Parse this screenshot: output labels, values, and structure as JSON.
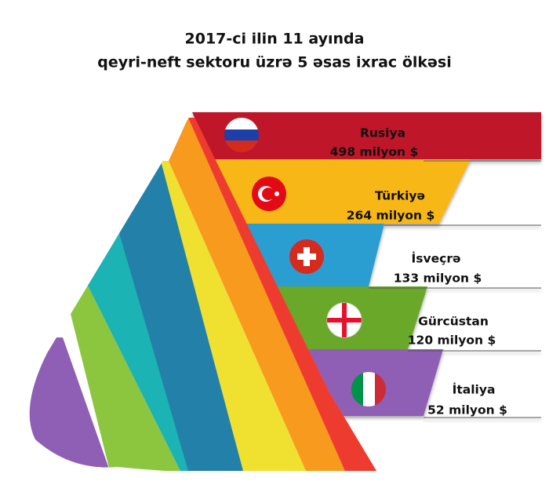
{
  "title": [
    "2017-ci ilin 11 ayında",
    "qeyri-neft sektoru üzrə 5 əsas ixrac ölkəsi"
  ],
  "items": [
    {
      "country": "Rusiya",
      "value": "498 milyon $"
    },
    {
      "country": "Türkiyə",
      "value": "264 milyon $"
    },
    {
      "country": "İsveçrə",
      "value": "133 milyon $"
    },
    {
      "country": "Gürcüstan",
      "value": "120 milyon $"
    },
    {
      "country": "İtaliya",
      "value": "52 milyon $"
    }
  ]
}
